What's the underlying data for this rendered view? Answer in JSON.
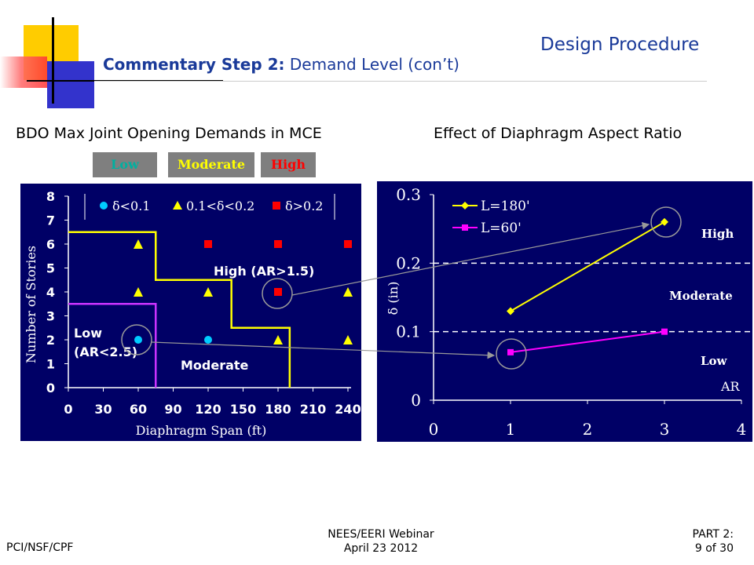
{
  "header": {
    "section_title": "Design Procedure",
    "title_bold": "Commentary Step 2:",
    "title_rest": " Demand Level (con’t)"
  },
  "subtitles": {
    "left": "BDO Max Joint Opening Demands in MCE",
    "right": "Effect of Diaphragm Aspect Ratio"
  },
  "level_legend": [
    {
      "label": "Low",
      "color": "#00b0a0"
    },
    {
      "label": "Moderate",
      "color": "#ffff00"
    },
    {
      "label": "High",
      "color": "#ff0000"
    }
  ],
  "chart_data": [
    {
      "type": "scatter",
      "xlabel": "Diaphragm Span (ft)",
      "ylabel": "Number of Stories",
      "xlim": [
        0,
        240
      ],
      "ylim": [
        0,
        8
      ],
      "xticks": [
        "0",
        "30",
        "60",
        "90",
        "120",
        "150",
        "180",
        "210",
        "240"
      ],
      "yticks": [
        "0",
        "1",
        "2",
        "3",
        "4",
        "5",
        "6",
        "7",
        "8"
      ],
      "legend": [
        "δ<0.1",
        "0.1<δ<0.2",
        "δ>0.2"
      ],
      "legend_placement": "top",
      "series": [
        {
          "name": "δ<0.1",
          "marker": "circle",
          "color": "#00ccff",
          "points": [
            [
              60,
              2
            ],
            [
              120,
              2
            ]
          ]
        },
        {
          "name": "0.1<δ<0.2",
          "marker": "triangle",
          "color": "#ffff00",
          "points": [
            [
              60,
              6
            ],
            [
              60,
              4
            ],
            [
              120,
              4
            ],
            [
              180,
              2
            ],
            [
              240,
              4
            ],
            [
              240,
              2
            ]
          ]
        },
        {
          "name": "δ>0.2",
          "marker": "square",
          "color": "#ff0000",
          "points": [
            [
              120,
              6
            ],
            [
              180,
              6
            ],
            [
              240,
              6
            ],
            [
              180,
              4
            ]
          ]
        }
      ],
      "region_labels": {
        "high": "High (AR>1.5)",
        "low_line1": "Low",
        "low_line2": "(AR<2.5)",
        "moderate": "Moderate"
      },
      "yellow_boundary": [
        [
          0,
          6.5
        ],
        [
          75,
          6.5
        ],
        [
          75,
          4.5
        ],
        [
          140,
          4.5
        ],
        [
          140,
          2.5
        ],
        [
          190,
          2.5
        ],
        [
          190,
          0
        ]
      ],
      "magenta_boundary": [
        [
          0,
          3.5
        ],
        [
          75,
          3.5
        ],
        [
          75,
          0
        ]
      ]
    },
    {
      "type": "line",
      "xlabel": "AR",
      "ylabel": "δ (in)",
      "xlim": [
        0,
        4
      ],
      "ylim": [
        0,
        0.3
      ],
      "xticks": [
        "0",
        "1",
        "2",
        "3",
        "4"
      ],
      "yticks": [
        "0",
        "0.1",
        "0.2",
        "0.3"
      ],
      "legend_placement": "top-left",
      "series": [
        {
          "name": "L=180'",
          "color": "#ffff00",
          "marker": "diamond",
          "x": [
            1,
            3
          ],
          "y": [
            0.13,
            0.26
          ]
        },
        {
          "name": "L=60'",
          "color": "#ff00ff",
          "marker": "square",
          "x": [
            1,
            3
          ],
          "y": [
            0.07,
            0.1
          ]
        }
      ],
      "thresholds": [
        0.1,
        0.2
      ],
      "region_labels": {
        "high": "High",
        "moderate": "Moderate",
        "low": "Low"
      }
    }
  ],
  "footer": {
    "left": "PCI/NSF/CPF",
    "mid_line1": "NEES/EERI Webinar",
    "mid_line2": "April 23 2012",
    "right_line1": "PART 2:",
    "right_line2": "9 of 30"
  }
}
